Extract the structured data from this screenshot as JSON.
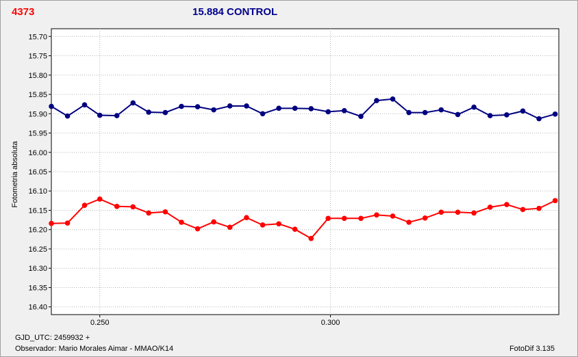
{
  "header": {
    "object_id": "4373",
    "title": "15.884 CONTROL"
  },
  "footer": {
    "gjd": "GJD_UTC: 2459932 +",
    "observer": "Observador: Mario Morales Aimar - MMAO/K14",
    "version": "FotoDif 3.135"
  },
  "chart_data": {
    "type": "line",
    "title": "15.884 CONTROL",
    "xlabel": "",
    "ylabel": "Fotometria absoluta",
    "xlim": [
      0.2395,
      0.3495
    ],
    "ylim": [
      15.68,
      16.42
    ],
    "y_inverted": true,
    "grid": true,
    "x_ticks": [
      0.25,
      0.3
    ],
    "x_tick_labels": [
      "0.250",
      "0.300"
    ],
    "y_ticks": [
      15.7,
      15.75,
      15.8,
      15.85,
      15.9,
      15.95,
      16.0,
      16.05,
      16.1,
      16.15,
      16.2,
      16.25,
      16.3,
      16.35,
      16.4
    ],
    "y_tick_labels": [
      "15.70",
      "15.75",
      "15.80",
      "15.85",
      "15.90",
      "15.95",
      "16.00",
      "16.05",
      "16.10",
      "16.15",
      "16.20",
      "16.25",
      "16.30",
      "16.35",
      "16.40"
    ],
    "x": [
      0.2395,
      0.243,
      0.2467,
      0.25,
      0.2537,
      0.2572,
      0.2606,
      0.2642,
      0.2677,
      0.2712,
      0.2747,
      0.2782,
      0.2818,
      0.2853,
      0.2888,
      0.2923,
      0.2958,
      0.2995,
      0.303,
      0.3066,
      0.31,
      0.3135,
      0.317,
      0.3205,
      0.324,
      0.3276,
      0.3311,
      0.3346,
      0.3382,
      0.3417,
      0.3452,
      0.3487
    ],
    "series": [
      {
        "color": "#000080",
        "values": [
          15.881,
          15.906,
          15.877,
          15.904,
          15.905,
          15.872,
          15.896,
          15.897,
          15.881,
          15.882,
          15.89,
          15.88,
          15.88,
          15.9,
          15.886,
          15.886,
          15.887,
          15.895,
          15.892,
          15.907,
          15.866,
          15.862,
          15.897,
          15.897,
          15.89,
          15.902,
          15.883,
          15.905,
          15.903,
          15.893,
          15.913,
          15.901
        ]
      },
      {
        "color": "#ff0000",
        "values": [
          16.184,
          16.183,
          16.137,
          16.121,
          16.14,
          16.141,
          16.157,
          16.154,
          16.181,
          16.198,
          16.18,
          16.194,
          16.169,
          16.188,
          16.185,
          16.199,
          16.223,
          16.171,
          16.171,
          16.171,
          16.162,
          16.165,
          16.181,
          16.17,
          16.155,
          16.155,
          16.157,
          16.142,
          16.135,
          16.148,
          16.145,
          16.125
        ]
      }
    ]
  }
}
